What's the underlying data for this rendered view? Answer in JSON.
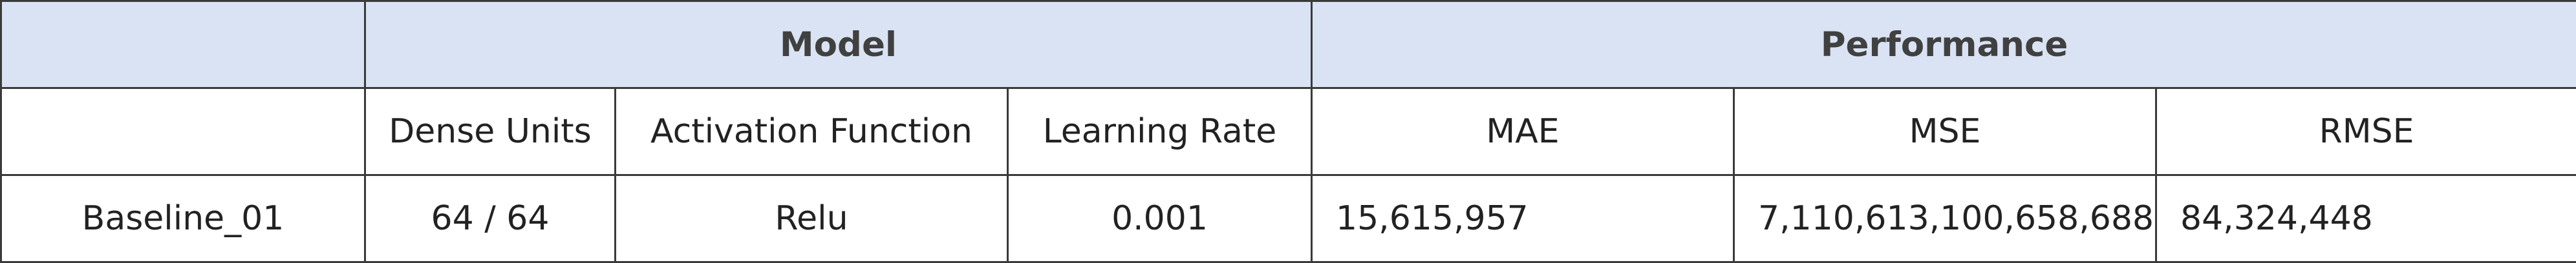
{
  "table": {
    "groups": {
      "model": "Model",
      "performance": "Performance"
    },
    "headers": {
      "blank": "",
      "dense_units": "Dense Units",
      "activation_function": "Activation Function",
      "learning_rate": "Learning Rate",
      "mae": "MAE",
      "mse": "MSE",
      "rmse": "RMSE"
    },
    "rows": [
      {
        "name": "Baseline_01",
        "dense_units": "64 / 64",
        "activation_function": "Relu",
        "learning_rate": "0.001",
        "mae": "15,615,957",
        "mse": "7,110,613,100,658,688",
        "rmse": "84,324,448"
      }
    ]
  },
  "colors": {
    "header_fill": "#dae3f3",
    "border": "#3a3a3a"
  }
}
